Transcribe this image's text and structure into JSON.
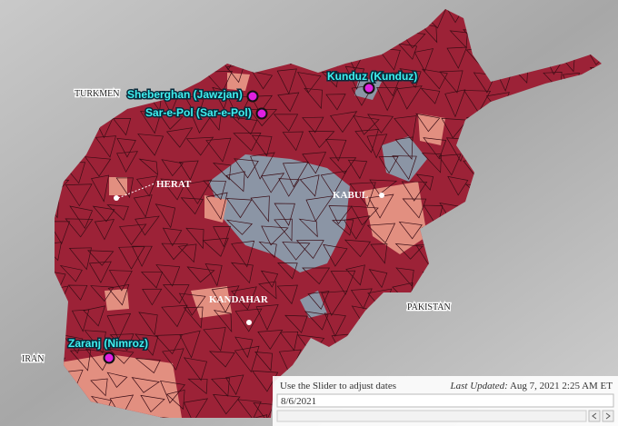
{
  "map": {
    "country_labels": [
      "TURKMEN",
      "PAKISTAN",
      "IRAN"
    ],
    "city_labels": [
      "HERAT",
      "KABUL",
      "KANDAHAR"
    ],
    "captured_cities": [
      "Sheberghan (Jawzjan)",
      "Sar-e-Pol (Sar-e-Pol)",
      "Kunduz (Kunduz)",
      "Zaranj (Nimroz)"
    ]
  },
  "slider": {
    "instruction": "Use the Slider to adjust dates",
    "last_updated_label": "Last Updated:",
    "last_updated_value": "Aug 7, 2021 2:25 AM ET",
    "date": "8/6/2021"
  }
}
